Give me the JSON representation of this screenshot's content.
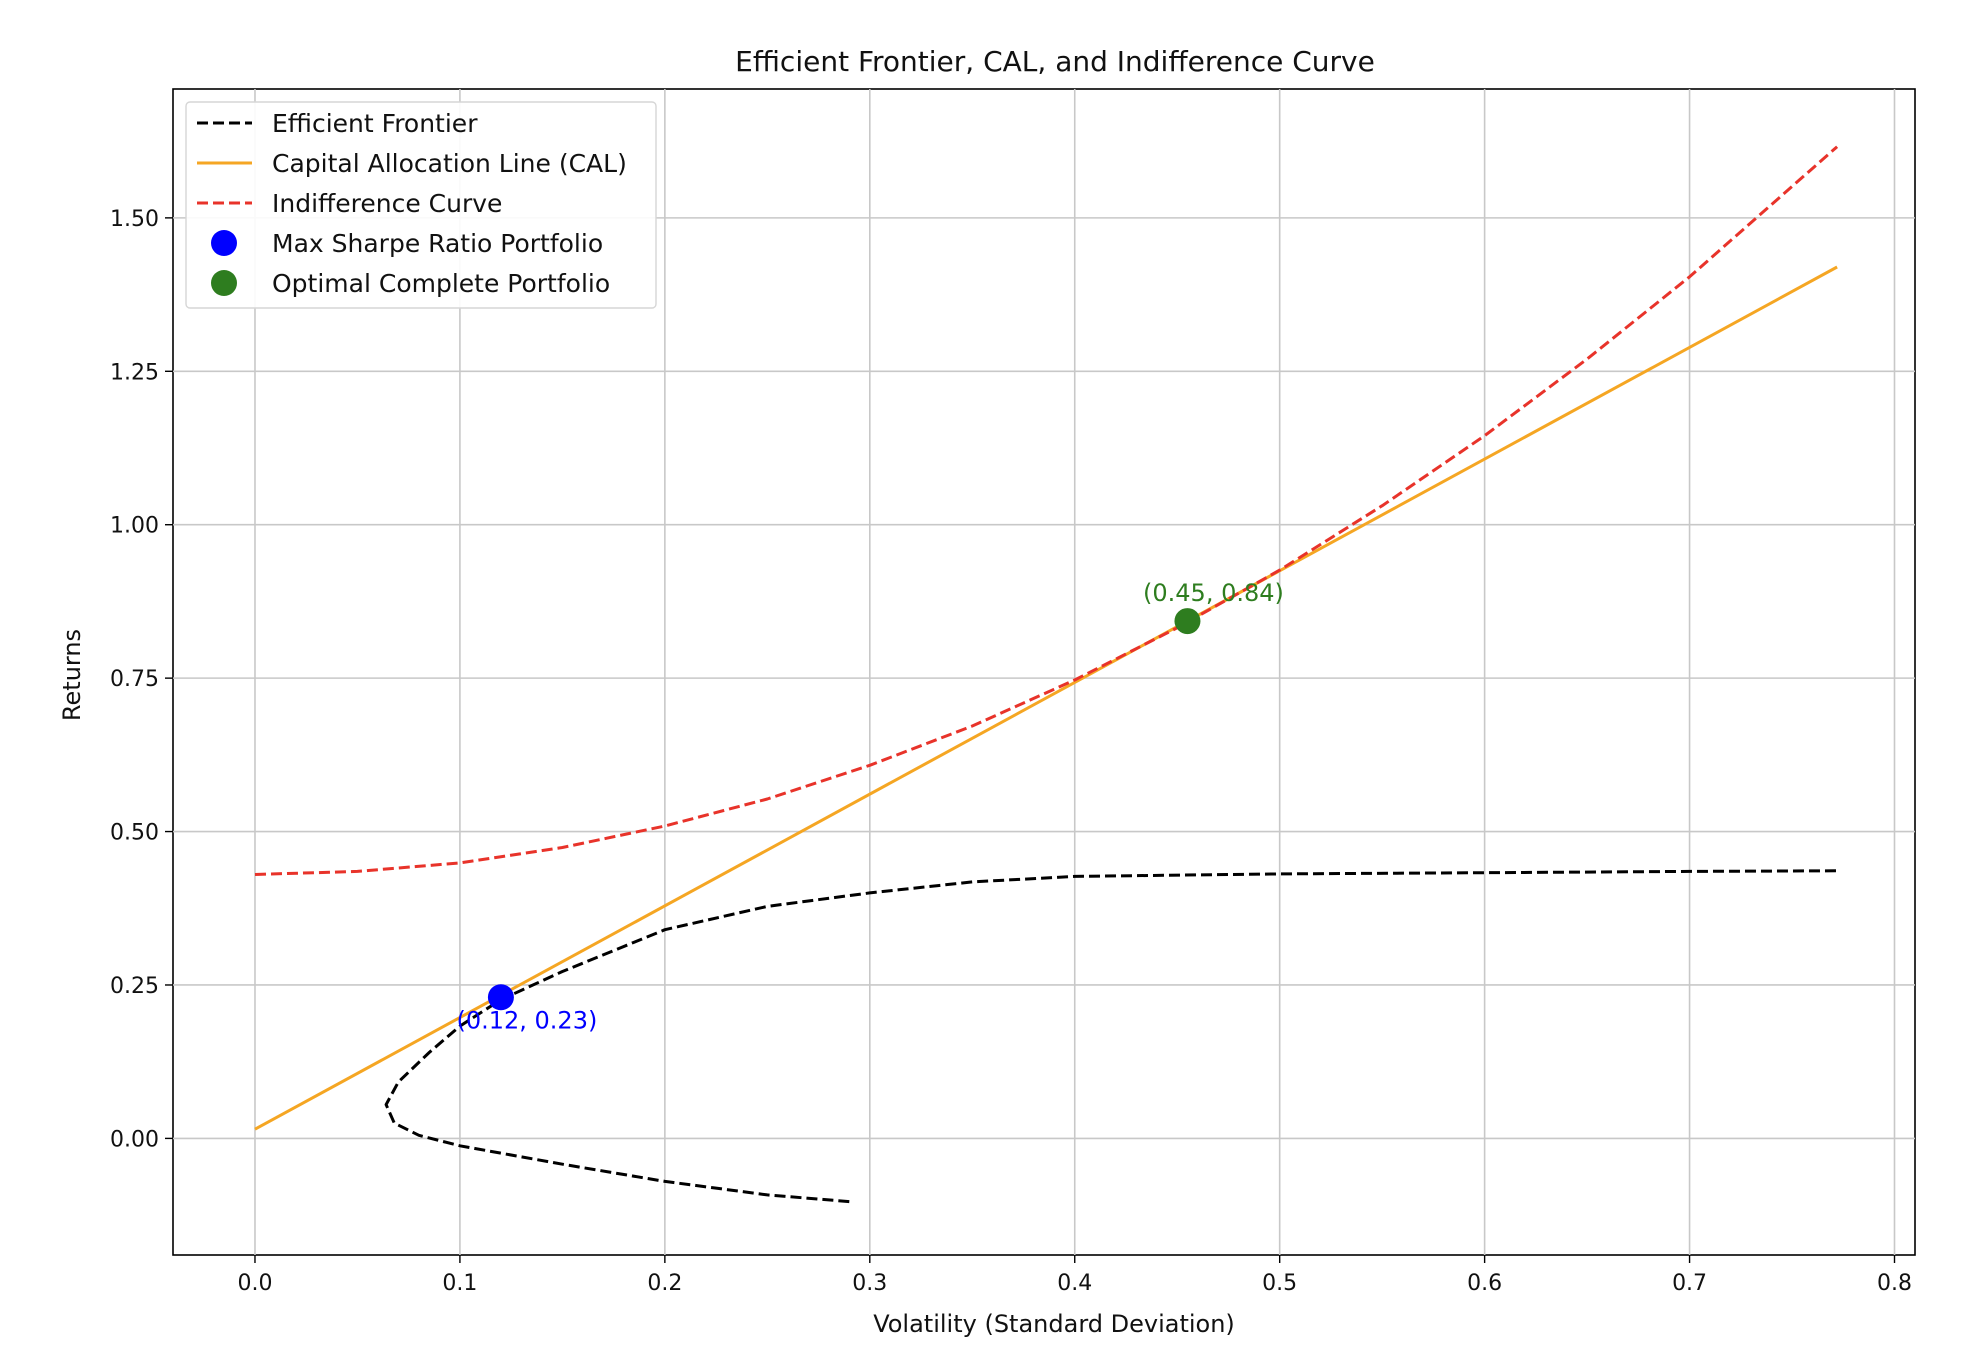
{
  "chart_data": {
    "type": "line",
    "title": "Efficient Frontier, CAL, and Indifference Curve",
    "xlabel": "Volatility (Standard Deviation)",
    "ylabel": "Returns",
    "xlim": [
      -0.04,
      0.81
    ],
    "ylim": [
      -0.19,
      1.71
    ],
    "x_ticks": [
      0.0,
      0.1,
      0.2,
      0.3,
      0.4,
      0.5,
      0.6,
      0.7,
      0.8
    ],
    "x_tick_labels": [
      "0.0",
      "0.1",
      "0.2",
      "0.3",
      "0.4",
      "0.5",
      "0.6",
      "0.7",
      "0.8"
    ],
    "y_ticks": [
      0.0,
      0.25,
      0.5,
      0.75,
      1.0,
      1.25,
      1.5
    ],
    "y_tick_labels": [
      "0.00",
      "0.25",
      "0.50",
      "0.75",
      "1.00",
      "1.25",
      "1.50"
    ],
    "grid": true,
    "legend_position": "top-left",
    "series": [
      {
        "name": "Efficient Frontier",
        "style": "dashed",
        "color": "#000000",
        "points": [
          [
            0.29,
            -0.103
          ],
          [
            0.25,
            -0.092
          ],
          [
            0.2,
            -0.07
          ],
          [
            0.15,
            -0.042
          ],
          [
            0.1,
            -0.012
          ],
          [
            0.08,
            0.005
          ],
          [
            0.068,
            0.025
          ],
          [
            0.064,
            0.055
          ],
          [
            0.07,
            0.092
          ],
          [
            0.085,
            0.14
          ],
          [
            0.1,
            0.183
          ],
          [
            0.12,
            0.226
          ],
          [
            0.15,
            0.272
          ],
          [
            0.2,
            0.34
          ],
          [
            0.25,
            0.378
          ],
          [
            0.3,
            0.4
          ],
          [
            0.35,
            0.418
          ],
          [
            0.4,
            0.427
          ],
          [
            0.5,
            0.431
          ],
          [
            0.6,
            0.433
          ],
          [
            0.7,
            0.435
          ],
          [
            0.772,
            0.436
          ]
        ]
      },
      {
        "name": "Capital Allocation Line (CAL)",
        "style": "solid",
        "color": "#f5a623",
        "points": [
          [
            0.0,
            0.015
          ],
          [
            0.772,
            1.42
          ]
        ]
      },
      {
        "name": "Indifference Curve",
        "style": "dashed",
        "color": "#e8332a",
        "points": [
          [
            0.0,
            0.43
          ],
          [
            0.05,
            0.435
          ],
          [
            0.1,
            0.449
          ],
          [
            0.15,
            0.474
          ],
          [
            0.2,
            0.509
          ],
          [
            0.25,
            0.553
          ],
          [
            0.3,
            0.608
          ],
          [
            0.35,
            0.672
          ],
          [
            0.4,
            0.747
          ],
          [
            0.45,
            0.832
          ],
          [
            0.5,
            0.926
          ],
          [
            0.55,
            1.031
          ],
          [
            0.6,
            1.145
          ],
          [
            0.65,
            1.27
          ],
          [
            0.7,
            1.404
          ],
          [
            0.772,
            1.616
          ]
        ]
      }
    ],
    "points": [
      {
        "name": "Max Sharpe Ratio Portfolio",
        "x": 0.12,
        "y": 0.23,
        "color": "#0000ff",
        "label": "(0.12, 0.23)"
      },
      {
        "name": "Optimal Complete Portfolio",
        "x": 0.455,
        "y": 0.843,
        "color": "#2e7d1f",
        "label": "(0.45, 0.84)"
      }
    ]
  }
}
